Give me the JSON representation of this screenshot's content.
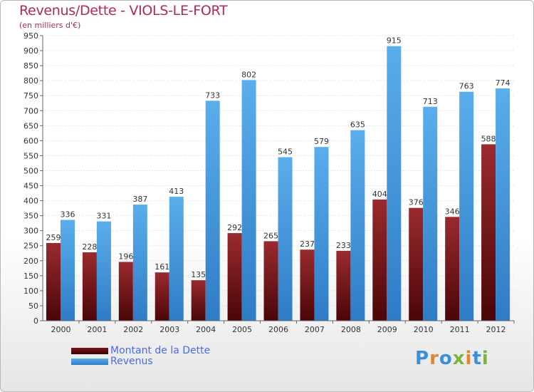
{
  "title": "Revenus/Dette - VIOLS-LE-FORT",
  "subtitle": "(en milliers d'€)",
  "logo_text": "Proxiti",
  "colors": {
    "dette": "#7a1418",
    "revenus": "#3d8fd8",
    "title": "#b5265d",
    "legend_text": "#4a6be6"
  },
  "chart_data": {
    "type": "bar",
    "title": "Revenus/Dette - VIOLS-LE-FORT",
    "subtitle": "(en milliers d'€)",
    "categories": [
      "2000",
      "2001",
      "2002",
      "2003",
      "2004",
      "2005",
      "2006",
      "2007",
      "2008",
      "2009",
      "2010",
      "2011",
      "2012"
    ],
    "series": [
      {
        "name": "Montant de la Dette",
        "color": "#7a1418",
        "values": [
          259,
          228,
          196,
          161,
          135,
          292,
          265,
          237,
          233,
          404,
          376,
          346,
          588
        ]
      },
      {
        "name": "Revenus",
        "color": "#3d8fd8",
        "values": [
          336,
          331,
          387,
          413,
          733,
          802,
          545,
          579,
          635,
          915,
          713,
          763,
          774
        ]
      }
    ],
    "ylim": [
      0,
      950
    ],
    "yticks": [
      0,
      50,
      100,
      150,
      200,
      250,
      300,
      350,
      400,
      450,
      500,
      550,
      600,
      650,
      700,
      750,
      800,
      850,
      900,
      950
    ],
    "grid": true,
    "legend_position": "bottom-left",
    "data_labels": true
  }
}
